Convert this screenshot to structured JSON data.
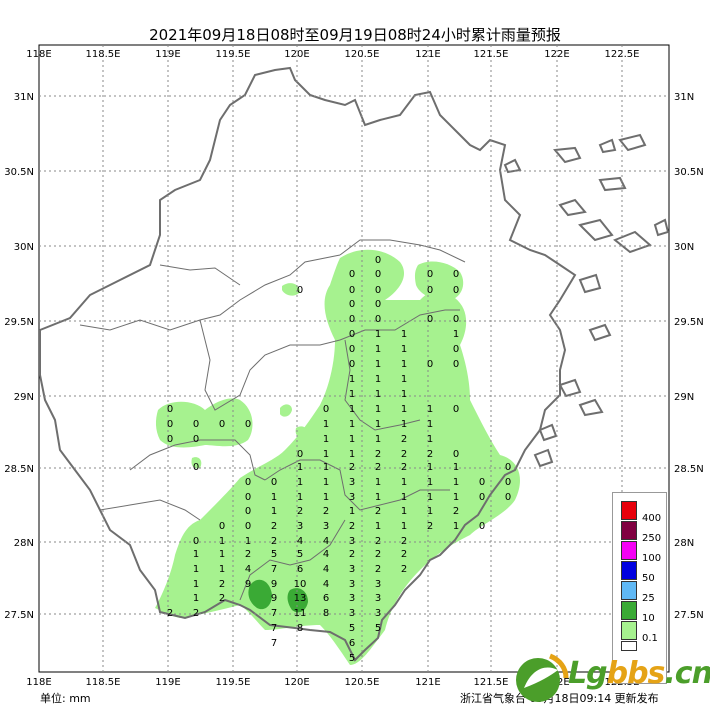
{
  "title": "2021年09月18日08时至09月19日08时24小时累计雨量预报",
  "x_ticks": [
    "118E",
    "118.5E",
    "119E",
    "119.5E",
    "120E",
    "120.5E",
    "121E",
    "121.5E",
    "122E",
    "122.5E"
  ],
  "y_ticks": [
    "31N",
    "30.5N",
    "30N",
    "29.5N",
    "29N",
    "28.5N",
    "28N",
    "27.5N"
  ],
  "footer": {
    "unit": "单位:  mm",
    "issuer": "浙江省气象台  09月18日09:14 更新发布"
  },
  "legend": [
    {
      "label": "400",
      "color": "#e8000b"
    },
    {
      "label": "250",
      "color": "#800040"
    },
    {
      "label": "100",
      "color": "#f500f5"
    },
    {
      "label": "50",
      "color": "#0000e0"
    },
    {
      "label": "25",
      "color": "#5fb8f5"
    },
    {
      "label": "10",
      "color": "#3aaa35"
    },
    {
      "label": "0.1",
      "color": "#a6f28f"
    }
  ],
  "watermark": {
    "main": "Lg",
    "accent": "bbs",
    "suffix": ".cn"
  },
  "colors": {
    "light_rain": "#a6f28f",
    "moderate_rain": "#3aaa35",
    "border": "#6e6e6e",
    "grid": "#888888"
  }
}
